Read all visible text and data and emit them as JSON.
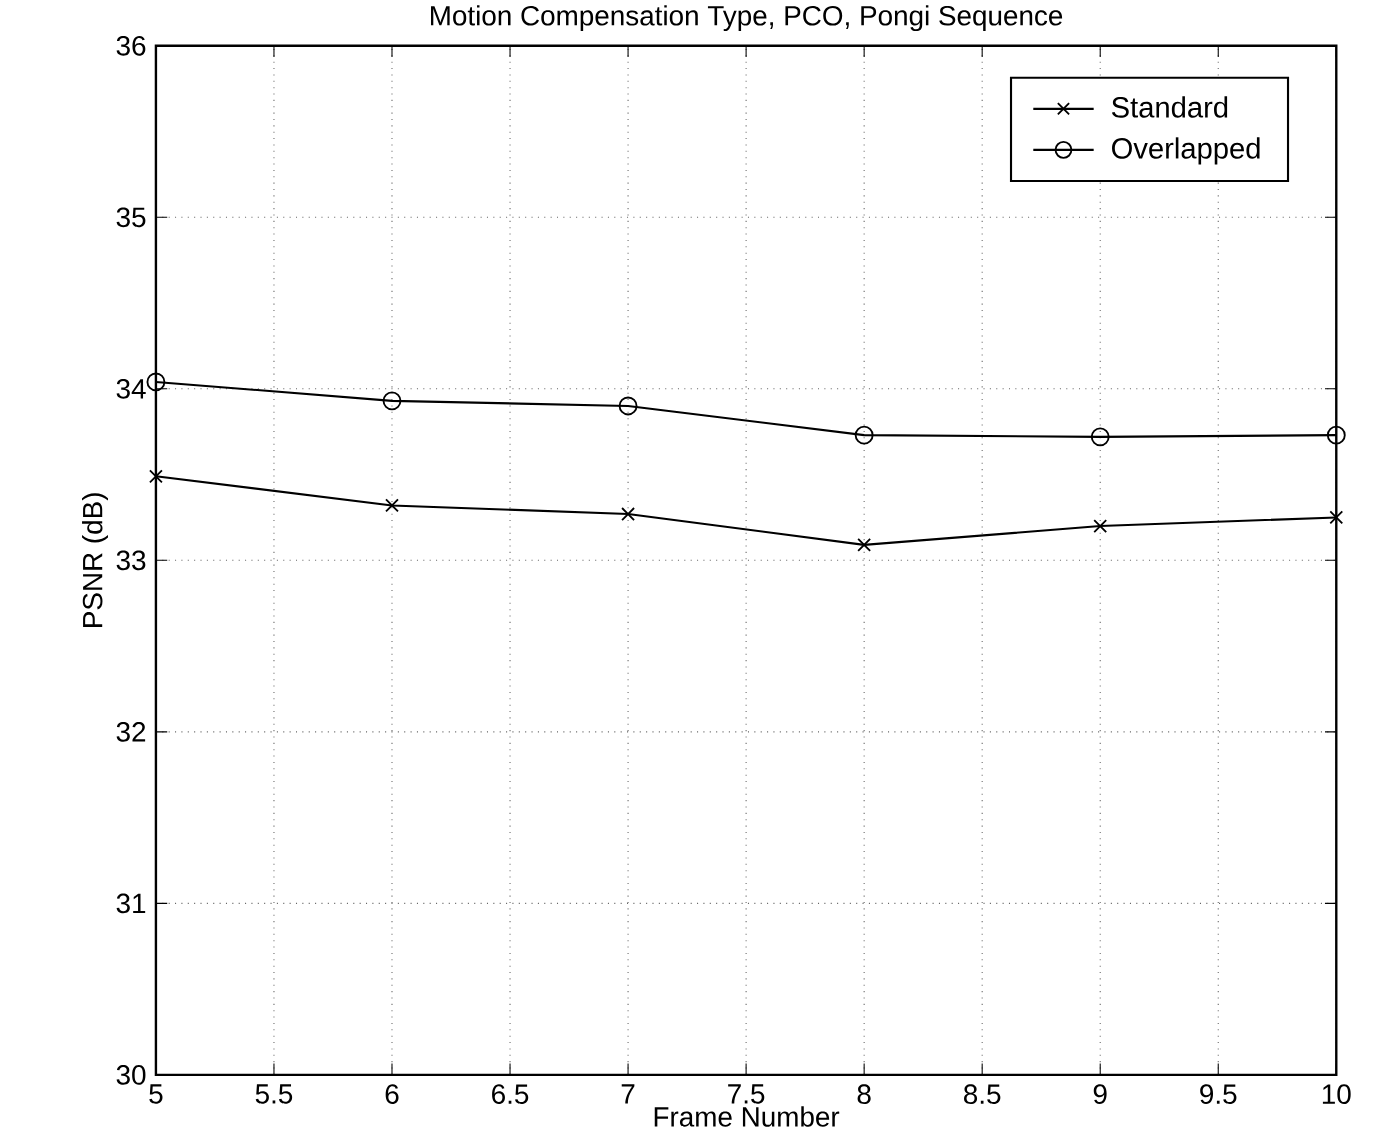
{
  "chart_data": {
    "type": "line",
    "title": "Motion Compensation Type, PCO, Pongi Sequence",
    "xlabel": "Frame Number",
    "ylabel": "PSNR (dB)",
    "x": [
      5,
      6,
      7,
      8,
      9,
      10
    ],
    "series": [
      {
        "name": "Standard",
        "color": "#000000",
        "marker": "cross",
        "values": [
          33.49,
          33.32,
          33.27,
          33.09,
          33.2,
          33.25
        ]
      },
      {
        "name": "Overlapped",
        "color": "#000000",
        "marker": "circle",
        "values": [
          34.04,
          33.93,
          33.9,
          33.73,
          33.72,
          33.73
        ]
      }
    ],
    "xlim": [
      5,
      10
    ],
    "xticks": [
      5,
      5.5,
      6,
      6.5,
      7,
      7.5,
      8,
      8.5,
      9,
      9.5,
      10
    ],
    "ylim": [
      30,
      36
    ],
    "yticks": [
      30,
      31,
      32,
      33,
      34,
      35,
      36
    ],
    "grid": true,
    "legend": "top right",
    "line_style": "solid"
  }
}
